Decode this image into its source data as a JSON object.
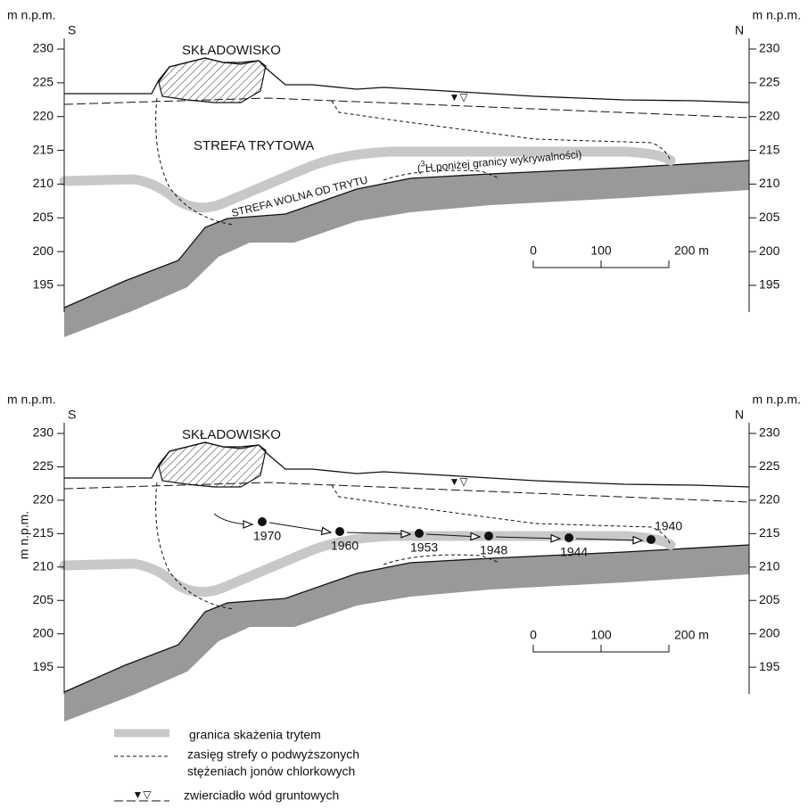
{
  "panels": [
    {
      "unit_left": "m n.p.m.",
      "unit_right": "m n.p.m.",
      "dir_left": "S",
      "dir_right": "N",
      "yticks": [
        230,
        225,
        220,
        215,
        210,
        205,
        200,
        195
      ],
      "landfill": "SKŁADOWISKO",
      "zone_label": "STREFA TRYTOWA",
      "free_zone_label": "STREFA WOLNA OD TRYTU",
      "note_open": "(",
      "note_sup": "3",
      "note_text": "H poniżej granicy wykrywalności)",
      "scale_labels": [
        "0",
        "100",
        "200 m"
      ]
    },
    {
      "unit_left": "m n.p.m.",
      "unit_right": "m n.p.m.",
      "dir_left": "S",
      "dir_right": "N",
      "yticks": [
        230,
        225,
        220,
        215,
        210,
        205,
        200,
        195
      ],
      "y_axis_title": "m n.p.m.",
      "landfill": "SKŁADOWISKO",
      "years": [
        1970,
        1960,
        1953,
        1948,
        1944,
        1940
      ],
      "scale_labels": [
        "0",
        "100",
        "200 m"
      ]
    }
  ],
  "legend": [
    {
      "lines": [
        "granica skażenia trytem"
      ]
    },
    {
      "lines": [
        "zasięg  strefy o podwyższonych",
        "stężeniach jonów chlorkowych"
      ]
    },
    {
      "lines": [
        "zwierciadło wód gruntowych"
      ]
    }
  ]
}
